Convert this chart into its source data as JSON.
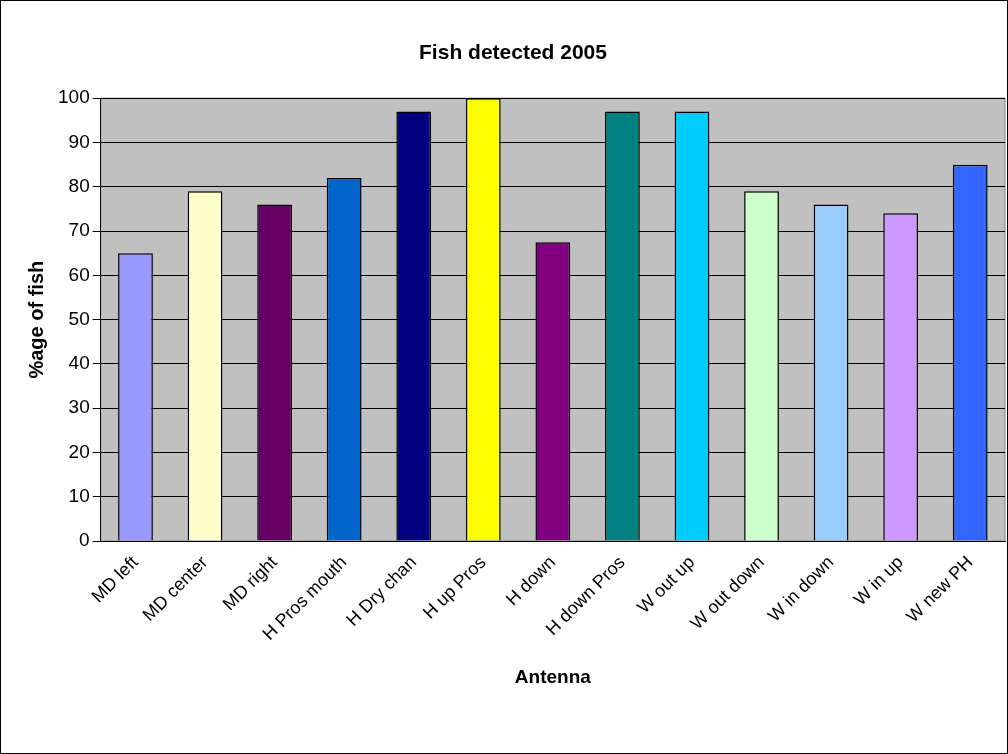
{
  "chart_data": {
    "type": "bar",
    "title": "Fish detected 2005",
    "xlabel": "Antenna",
    "ylabel": "%age of fish",
    "categories": [
      "MD left",
      "MD center",
      "MD right",
      "H Pros mouth",
      "H Dry chan",
      "H up Pros",
      "H down",
      "H down Pros",
      "W out up",
      "W out down",
      "W in down",
      "W in up",
      "W new PH"
    ],
    "values": [
      65,
      79,
      76,
      82,
      97,
      100,
      67.5,
      97,
      97,
      79,
      76,
      74,
      85
    ],
    "colors": [
      "#9999ff",
      "#ffffcc",
      "#660066",
      "#0066cc",
      "#000080",
      "#ffff00",
      "#800080",
      "#008080",
      "#00ccff",
      "#ccffcc",
      "#99ccff",
      "#cc99ff",
      "#3366ff"
    ],
    "ylim": [
      0,
      100
    ],
    "yticks": [
      0,
      10,
      20,
      30,
      40,
      50,
      60,
      70,
      80,
      90,
      100
    ],
    "grid": "y",
    "legend": false
  }
}
